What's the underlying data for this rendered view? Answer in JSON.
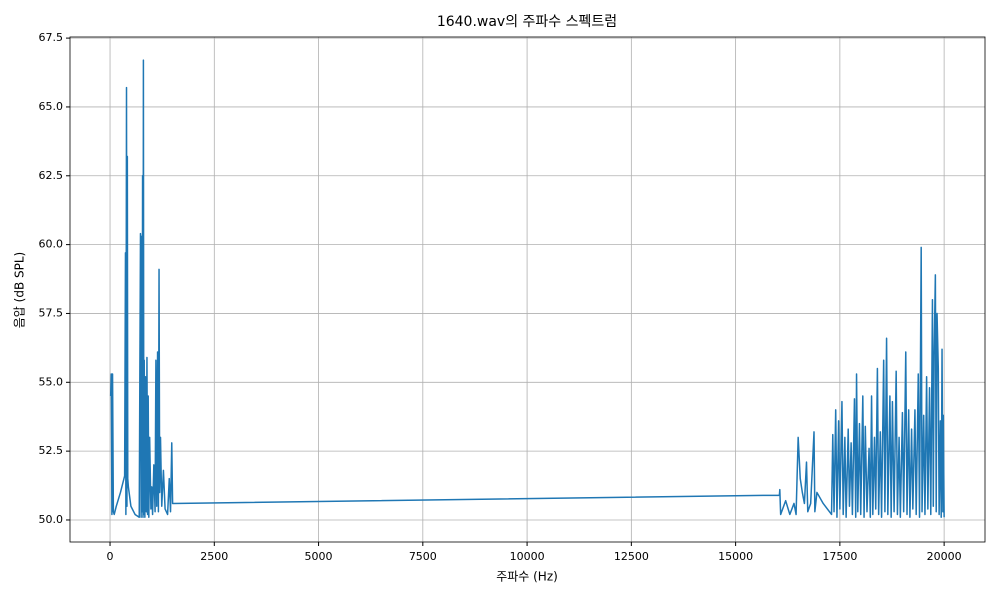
{
  "chart_data": {
    "type": "line",
    "title": "1640.wav의 주파수 스펙트럼",
    "x_label": "주파수 (Hz)",
    "y_label": "음압 (dB SPL)",
    "grid": true,
    "xlim": [
      -960,
      20980
    ],
    "ylim": [
      49.2,
      67.54
    ],
    "xticks": [
      0,
      2500,
      5000,
      7500,
      10000,
      12500,
      15000,
      17500,
      20000
    ],
    "yticks": [
      {
        "value": 50,
        "label": "50.0"
      },
      52.5,
      {
        "value": 55,
        "label": "55.0"
      },
      57.5,
      {
        "value": 60,
        "label": "60.0"
      },
      62.5,
      {
        "value": 65,
        "label": "65.0"
      },
      67.5
    ],
    "series": [
      {
        "color": "#1f77b4",
        "x": [
          15,
          30,
          45,
          60,
          80,
          100,
          150,
          250,
          350,
          370,
          380,
          395,
          405,
          415,
          425,
          440,
          500,
          600,
          700,
          730,
          745,
          760,
          770,
          780,
          790,
          800,
          810,
          820,
          835,
          850,
          870,
          885,
          900,
          915,
          930,
          950,
          980,
          1000,
          1020,
          1050,
          1080,
          1100,
          1120,
          1140,
          1160,
          1175,
          1190,
          1210,
          1240,
          1280,
          1320,
          1380,
          1420,
          1450,
          1480,
          1500,
          16050,
          16060,
          16080,
          16200,
          16300,
          16400,
          16450,
          16500,
          16550,
          16600,
          16650,
          16700,
          16730,
          16800,
          16880,
          16900,
          16950,
          17100,
          17300,
          17330,
          17360,
          17400,
          17430,
          17470,
          17500,
          17550,
          17580,
          17620,
          17650,
          17700,
          17730,
          17770,
          17800,
          17850,
          17880,
          17900,
          17930,
          17970,
          18000,
          18050,
          18080,
          18110,
          18150,
          18200,
          18230,
          18260,
          18290,
          18330,
          18360,
          18400,
          18430,
          18470,
          18500,
          18550,
          18580,
          18620,
          18650,
          18700,
          18730,
          18760,
          18800,
          18850,
          18880,
          18920,
          18950,
          19000,
          19030,
          19080,
          19110,
          19150,
          19180,
          19220,
          19250,
          19300,
          19330,
          19380,
          19410,
          19450,
          19470,
          19510,
          19540,
          19580,
          19610,
          19650,
          19680,
          19720,
          19740,
          19760,
          19790,
          19810,
          19830,
          19860,
          19880,
          19910,
          19930,
          19950,
          19970,
          19980,
          20000
        ],
        "values": [
          54.5,
          55.3,
          50.2,
          55.3,
          50.3,
          50.2,
          50.5,
          51.0,
          51.6,
          59.7,
          50.2,
          65.7,
          50.5,
          63.2,
          51.5,
          51.2,
          50.5,
          50.2,
          50.1,
          60.4,
          50.1,
          60.3,
          50.3,
          62.5,
          50.1,
          66.7,
          50.2,
          55.8,
          50.1,
          55.2,
          50.3,
          55.9,
          50.2,
          54.5,
          50.1,
          53.0,
          50.4,
          51.2,
          50.2,
          52.0,
          50.3,
          55.8,
          50.5,
          56.1,
          50.3,
          59.1,
          51.0,
          53.0,
          50.5,
          51.8,
          50.4,
          50.2,
          51.5,
          50.3,
          52.8,
          50.6,
          50.9,
          51.1,
          50.2,
          50.7,
          50.2,
          50.6,
          50.2,
          53.0,
          51.5,
          51.0,
          50.6,
          52.1,
          50.3,
          50.6,
          53.2,
          50.3,
          51.0,
          50.6,
          50.2,
          53.1,
          50.3,
          54.0,
          50.1,
          53.6,
          50.4,
          54.3,
          50.2,
          53.0,
          50.1,
          53.3,
          50.5,
          52.8,
          50.2,
          54.4,
          50.1,
          55.3,
          50.3,
          53.5,
          50.2,
          54.5,
          50.1,
          53.4,
          50.3,
          52.6,
          50.1,
          54.5,
          50.2,
          53.0,
          50.4,
          55.5,
          50.2,
          53.2,
          50.1,
          55.8,
          50.3,
          56.6,
          50.2,
          54.5,
          50.1,
          54.3,
          50.3,
          55.4,
          50.2,
          53.0,
          50.1,
          53.9,
          50.3,
          56.1,
          50.2,
          54.0,
          50.1,
          53.3,
          50.4,
          54.0,
          50.2,
          55.3,
          50.1,
          59.9,
          50.3,
          53.8,
          50.2,
          55.2,
          50.4,
          54.8,
          50.2,
          58.0,
          50.5,
          56.0,
          58.9,
          50.3,
          57.5,
          55.5,
          50.2,
          53.6,
          50.1,
          56.2,
          50.3,
          53.8,
          50.1
        ]
      }
    ]
  }
}
